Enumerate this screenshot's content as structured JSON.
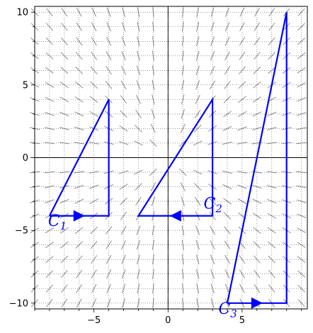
{
  "chart_data": {
    "type": "line",
    "title": "",
    "xlabel": "",
    "ylabel": "",
    "xlim": [
      -9,
      9.4
    ],
    "ylim": [
      -10.4,
      10.4
    ],
    "x_ticks": [
      -5,
      0,
      5
    ],
    "y_ticks": [
      -10,
      -5,
      0,
      5,
      10
    ],
    "grid": true,
    "vector_field": {
      "description": "radial direction field",
      "color": "#808080",
      "x_range": [
        -9,
        9
      ],
      "y_range": [
        -10,
        10
      ],
      "step": 1
    },
    "series": [
      {
        "name": "C_1",
        "label_main": "C",
        "label_sub": "1",
        "color": "#0000ff",
        "points": [
          [
            -8,
            -4
          ],
          [
            -4,
            -4
          ],
          [
            -4,
            4
          ],
          [
            -8,
            -4
          ]
        ],
        "arrow": {
          "from": [
            -8,
            -4
          ],
          "to": [
            -4,
            -4
          ]
        },
        "label_at": [
          -8.1,
          -4.7
        ]
      },
      {
        "name": "C_2",
        "label_main": "C",
        "label_sub": "2",
        "color": "#0000ff",
        "points": [
          [
            3,
            -4
          ],
          [
            -2,
            -4
          ],
          [
            3,
            4
          ],
          [
            3,
            -4
          ]
        ],
        "arrow": {
          "from": [
            3,
            -4
          ],
          "to": [
            -2,
            -4
          ]
        },
        "label_at": [
          2.4,
          -3.5
        ]
      },
      {
        "name": "C_3",
        "label_main": "C",
        "label_sub": "3",
        "color": "#0000ff",
        "points": [
          [
            4,
            -10
          ],
          [
            8,
            -10
          ],
          [
            8,
            10
          ],
          [
            4,
            -10
          ]
        ],
        "arrow": {
          "from": [
            4,
            -10
          ],
          "to": [
            8,
            -10
          ]
        },
        "label_at": [
          3.4,
          -10.75
        ]
      }
    ]
  }
}
